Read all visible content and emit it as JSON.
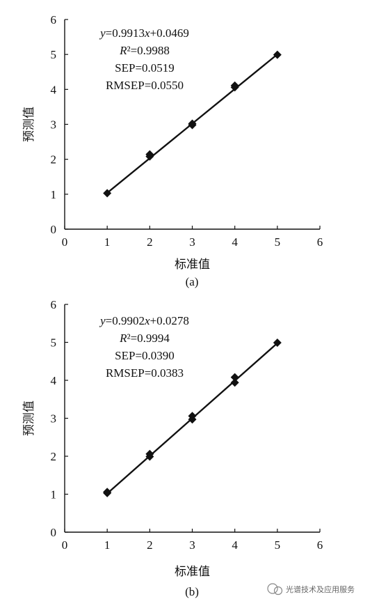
{
  "chart_data": [
    {
      "type": "scatter",
      "panel_label": "(a)",
      "xlabel": "标准值",
      "ylabel": "预测值",
      "xlim": [
        0,
        6
      ],
      "ylim": [
        0,
        6
      ],
      "x_ticks": [
        "0",
        "1",
        "2",
        "3",
        "4",
        "5",
        "6"
      ],
      "y_ticks": [
        "0",
        "1",
        "2",
        "3",
        "4",
        "5",
        "6"
      ],
      "points": [
        {
          "x": 1,
          "y": 1.03
        },
        {
          "x": 2,
          "y": 2.08
        },
        {
          "x": 2,
          "y": 2.14
        },
        {
          "x": 3,
          "y": 2.98
        },
        {
          "x": 3,
          "y": 3.02
        },
        {
          "x": 4,
          "y": 4.06
        },
        {
          "x": 4,
          "y": 4.11
        },
        {
          "x": 5,
          "y": 4.99
        }
      ],
      "fit": {
        "slope": 0.9913,
        "intercept": 0.0469,
        "x_range": [
          1,
          5
        ]
      },
      "equation": {
        "line1": "y=0.9913x+0.0469",
        "line2": "R²=0.9988",
        "line3": "SEP=0.0519",
        "line4": "RMSEP=0.0550"
      }
    },
    {
      "type": "scatter",
      "panel_label": "(b)",
      "xlabel": "标准值",
      "ylabel": "预测值",
      "xlim": [
        0,
        6
      ],
      "ylim": [
        0,
        6
      ],
      "x_ticks": [
        "0",
        "1",
        "2",
        "3",
        "4",
        "5",
        "6"
      ],
      "y_ticks": [
        "0",
        "1",
        "2",
        "3",
        "4",
        "5",
        "6"
      ],
      "points": [
        {
          "x": 1,
          "y": 1.03
        },
        {
          "x": 1,
          "y": 1.06
        },
        {
          "x": 2,
          "y": 1.99
        },
        {
          "x": 2,
          "y": 2.06
        },
        {
          "x": 3,
          "y": 2.97
        },
        {
          "x": 3,
          "y": 3.06
        },
        {
          "x": 4,
          "y": 3.94
        },
        {
          "x": 4,
          "y": 4.08
        },
        {
          "x": 5,
          "y": 4.99
        }
      ],
      "fit": {
        "slope": 0.9902,
        "intercept": 0.0278,
        "x_range": [
          1,
          5
        ]
      },
      "equation": {
        "line1": "y=0.9902x+0.0278",
        "line2": "R²=0.9994",
        "line3": "SEP=0.0390",
        "line4": "RMSEP=0.0383"
      }
    }
  ],
  "watermark": {
    "text": "光谱技术及应用服务"
  }
}
